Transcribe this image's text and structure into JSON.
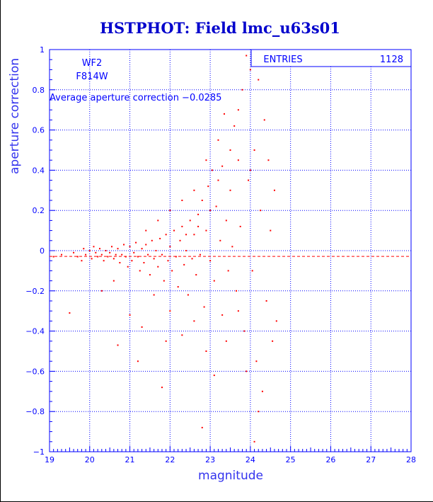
{
  "chart_data": {
    "type": "scatter",
    "title": "HSTPHOT: Field lmc_u63s01",
    "xlabel": "magnitude",
    "ylabel": "aperture correction",
    "xlim": [
      19,
      28
    ],
    "ylim": [
      -1,
      1
    ],
    "x_ticks": [
      19,
      20,
      21,
      22,
      23,
      24,
      25,
      26,
      27,
      28
    ],
    "y_ticks": [
      -1,
      -0.8,
      -0.6,
      -0.4,
      -0.2,
      0,
      0.2,
      0.4,
      0.6,
      0.8,
      1
    ],
    "y_tick_labels": [
      "−1",
      "−0.8",
      "−0.6",
      "−0.4",
      "−0.2",
      "0",
      "0.2",
      "0.4",
      "0.6",
      "0.8",
      "1"
    ],
    "grid": true,
    "camera": "WF2",
    "filter": "F814W",
    "average_text": "Average aperture correction −0.0285",
    "average_value": -0.0285,
    "stats": {
      "entries_label": "ENTRIES",
      "entries_value": "1128"
    },
    "colors": {
      "points": "#ff0000",
      "axes": "#0000ff",
      "title": "#0000cc",
      "average_line": "#ff0000"
    },
    "series": [
      {
        "points": [
          [
            19.1,
            -0.03
          ],
          [
            19.3,
            -0.02
          ],
          [
            19.5,
            -0.31
          ],
          [
            19.6,
            -0.01
          ],
          [
            19.7,
            -0.03
          ],
          [
            19.8,
            -0.05
          ],
          [
            19.85,
            0.01
          ],
          [
            19.9,
            -0.02
          ],
          [
            20.0,
            0.0
          ],
          [
            20.05,
            -0.04
          ],
          [
            20.1,
            0.02
          ],
          [
            20.15,
            -0.01
          ],
          [
            20.2,
            -0.03
          ],
          [
            20.25,
            0.01
          ],
          [
            20.3,
            -0.02
          ],
          [
            20.35,
            -0.05
          ],
          [
            20.4,
            0.0
          ],
          [
            20.45,
            -0.03
          ],
          [
            20.5,
            -0.01
          ],
          [
            20.55,
            0.02
          ],
          [
            20.6,
            -0.04
          ],
          [
            20.65,
            -0.02
          ],
          [
            20.7,
            0.01
          ],
          [
            20.75,
            -0.06
          ],
          [
            20.8,
            -0.02
          ],
          [
            20.85,
            0.03
          ],
          [
            20.9,
            -0.03
          ],
          [
            20.95,
            -0.08
          ],
          [
            21.0,
            0.02
          ],
          [
            21.05,
            -0.05
          ],
          [
            21.1,
            -0.01
          ],
          [
            21.15,
            0.04
          ],
          [
            21.2,
            -0.03
          ],
          [
            21.25,
            -0.1
          ],
          [
            21.3,
            0.01
          ],
          [
            21.35,
            -0.06
          ],
          [
            21.4,
            0.03
          ],
          [
            21.45,
            -0.02
          ],
          [
            21.5,
            -0.12
          ],
          [
            21.55,
            0.05
          ],
          [
            21.6,
            -0.04
          ],
          [
            21.65,
            0.0
          ],
          [
            21.7,
            -0.08
          ],
          [
            21.75,
            0.06
          ],
          [
            21.8,
            -0.02
          ],
          [
            21.85,
            -0.15
          ],
          [
            21.9,
            0.08
          ],
          [
            21.95,
            -0.05
          ],
          [
            22.0,
            0.02
          ],
          [
            22.05,
            -0.1
          ],
          [
            22.1,
            0.1
          ],
          [
            22.15,
            -0.03
          ],
          [
            22.2,
            -0.18
          ],
          [
            22.25,
            0.05
          ],
          [
            22.3,
            0.12
          ],
          [
            22.35,
            -0.07
          ],
          [
            22.4,
            0.0
          ],
          [
            22.45,
            -0.22
          ],
          [
            22.5,
            0.15
          ],
          [
            22.55,
            -0.04
          ],
          [
            22.6,
            0.08
          ],
          [
            22.65,
            -0.12
          ],
          [
            22.7,
            0.18
          ],
          [
            22.75,
            -0.02
          ],
          [
            22.8,
            0.25
          ],
          [
            22.85,
            -0.28
          ],
          [
            22.9,
            0.1
          ],
          [
            22.95,
            0.32
          ],
          [
            23.0,
            -0.05
          ],
          [
            23.05,
            0.4
          ],
          [
            23.1,
            -0.15
          ],
          [
            23.15,
            0.22
          ],
          [
            23.2,
            0.55
          ],
          [
            23.25,
            0.05
          ],
          [
            23.3,
            -0.32
          ],
          [
            23.35,
            0.68
          ],
          [
            23.4,
            0.15
          ],
          [
            23.45,
            -0.1
          ],
          [
            23.5,
            0.3
          ],
          [
            23.55,
            0.02
          ],
          [
            23.6,
            0.62
          ],
          [
            23.65,
            -0.2
          ],
          [
            23.7,
            0.45
          ],
          [
            23.75,
            0.12
          ],
          [
            23.8,
            0.8
          ],
          [
            23.85,
            -0.4
          ],
          [
            23.9,
            0.97
          ],
          [
            23.95,
            0.35
          ],
          [
            24.0,
            0.9
          ],
          [
            24.05,
            -0.1
          ],
          [
            24.1,
            0.5
          ],
          [
            24.15,
            -0.55
          ],
          [
            24.2,
            0.85
          ],
          [
            24.25,
            0.2
          ],
          [
            24.3,
            -0.7
          ],
          [
            24.35,
            0.65
          ],
          [
            24.4,
            -0.25
          ],
          [
            24.45,
            0.45
          ],
          [
            24.5,
            0.1
          ],
          [
            24.55,
            -0.45
          ],
          [
            24.6,
            0.3
          ],
          [
            24.65,
            -0.35
          ],
          [
            24.0,
            0.4
          ],
          [
            23.9,
            -0.6
          ],
          [
            22.8,
            -0.88
          ],
          [
            21.8,
            -0.68
          ],
          [
            21.2,
            -0.55
          ],
          [
            20.7,
            -0.47
          ],
          [
            21.9,
            -0.45
          ],
          [
            24.1,
            -0.95
          ],
          [
            24.2,
            -0.8
          ],
          [
            20.3,
            -0.2
          ],
          [
            20.6,
            -0.15
          ],
          [
            21.0,
            -0.32
          ],
          [
            21.3,
            -0.38
          ],
          [
            21.6,
            -0.22
          ],
          [
            22.0,
            -0.3
          ],
          [
            22.3,
            -0.42
          ],
          [
            22.6,
            -0.35
          ],
          [
            22.9,
            -0.5
          ],
          [
            23.1,
            -0.62
          ],
          [
            23.4,
            -0.45
          ],
          [
            23.7,
            -0.3
          ],
          [
            21.4,
            0.1
          ],
          [
            21.7,
            0.15
          ],
          [
            22.0,
            0.2
          ],
          [
            22.3,
            0.25
          ],
          [
            22.6,
            0.3
          ],
          [
            22.9,
            0.45
          ],
          [
            23.2,
            0.35
          ],
          [
            23.5,
            0.5
          ],
          [
            23.7,
            0.7
          ],
          [
            23.3,
            0.42
          ],
          [
            23.0,
            0.2
          ],
          [
            22.7,
            0.12
          ],
          [
            22.4,
            0.08
          ]
        ]
      }
    ]
  }
}
